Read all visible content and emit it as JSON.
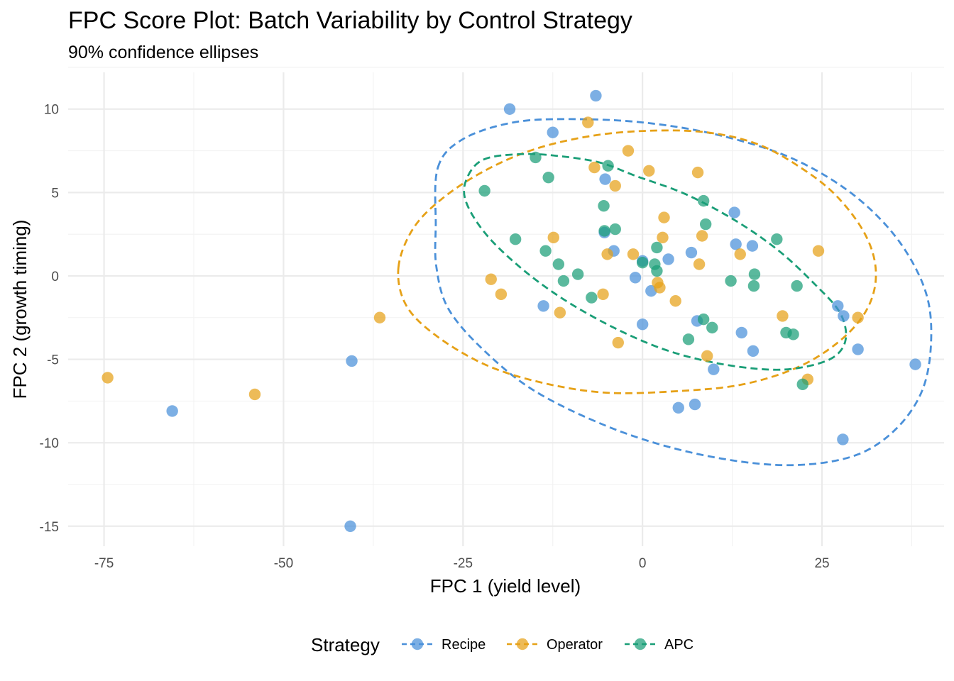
{
  "chart_data": {
    "type": "scatter",
    "title": "FPC Score Plot: Batch Variability by Control Strategy",
    "subtitle": "90% confidence ellipses",
    "xlabel": "FPC 1 (yield level)",
    "ylabel": "FPC 2 (growth timing)",
    "xlim": [
      -80,
      42
    ],
    "ylim": [
      -16.2,
      12.2
    ],
    "x_ticks": [
      -75,
      -50,
      -25,
      0,
      25
    ],
    "x_tick_labels": [
      "-75",
      "-50",
      "-25",
      "0",
      "25"
    ],
    "y_ticks": [
      10,
      5,
      0,
      -5,
      -10,
      -15
    ],
    "y_tick_labels": [
      "10",
      "5",
      "0",
      "-5",
      "-10",
      "-15"
    ],
    "legend": {
      "title": "Strategy",
      "position": "bottom"
    },
    "series": [
      {
        "name": "Recipe",
        "color": "#4a90d9",
        "points": [
          [
            -6.5,
            10.8
          ],
          [
            -18.5,
            10.0
          ],
          [
            -12.5,
            8.6
          ],
          [
            -5.2,
            5.8
          ],
          [
            12.8,
            3.8
          ],
          [
            13.0,
            1.9
          ],
          [
            15.3,
            1.8
          ],
          [
            -4.0,
            1.5
          ],
          [
            6.8,
            1.4
          ],
          [
            0.0,
            0.9
          ],
          [
            3.6,
            1.0
          ],
          [
            -1.0,
            -0.1
          ],
          [
            1.2,
            -0.9
          ],
          [
            -13.8,
            -1.8
          ],
          [
            7.6,
            -2.7
          ],
          [
            0.0,
            -2.9
          ],
          [
            27.2,
            -1.8
          ],
          [
            28.0,
            -2.4
          ],
          [
            13.8,
            -3.4
          ],
          [
            15.4,
            -4.5
          ],
          [
            30.0,
            -4.4
          ],
          [
            9.9,
            -5.6
          ],
          [
            38.0,
            -5.3
          ],
          [
            5.0,
            -7.9
          ],
          [
            7.3,
            -7.7
          ],
          [
            27.9,
            -9.8
          ],
          [
            -40.5,
            -5.1
          ],
          [
            -65.5,
            -8.1
          ],
          [
            -40.7,
            -15.0
          ],
          [
            -5.3,
            2.6
          ]
        ]
      },
      {
        "name": "Operator",
        "color": "#e6a117",
        "points": [
          [
            -7.6,
            9.2
          ],
          [
            -2.0,
            7.5
          ],
          [
            -6.7,
            6.5
          ],
          [
            0.9,
            6.3
          ],
          [
            7.7,
            6.2
          ],
          [
            -3.8,
            5.4
          ],
          [
            3.0,
            3.5
          ],
          [
            -12.4,
            2.3
          ],
          [
            2.8,
            2.3
          ],
          [
            8.3,
            2.4
          ],
          [
            -4.9,
            1.3
          ],
          [
            -1.3,
            1.3
          ],
          [
            13.6,
            1.3
          ],
          [
            24.5,
            1.5
          ],
          [
            7.9,
            0.7
          ],
          [
            -21.1,
            -0.2
          ],
          [
            -19.7,
            -1.1
          ],
          [
            2.1,
            -0.4
          ],
          [
            2.4,
            -0.7
          ],
          [
            -5.5,
            -1.1
          ],
          [
            4.6,
            -1.5
          ],
          [
            -11.5,
            -2.2
          ],
          [
            19.5,
            -2.4
          ],
          [
            30.0,
            -2.5
          ],
          [
            -36.6,
            -2.5
          ],
          [
            -3.4,
            -4.0
          ],
          [
            9.0,
            -4.8
          ],
          [
            23.0,
            -6.2
          ],
          [
            -74.5,
            -6.1
          ],
          [
            -54.0,
            -7.1
          ]
        ]
      },
      {
        "name": "APC",
        "color": "#1a9e77",
        "points": [
          [
            -14.9,
            7.1
          ],
          [
            -13.1,
            5.9
          ],
          [
            -4.8,
            6.6
          ],
          [
            -22.0,
            5.1
          ],
          [
            8.5,
            4.5
          ],
          [
            -5.4,
            4.2
          ],
          [
            8.8,
            3.1
          ],
          [
            -5.3,
            2.7
          ],
          [
            -3.8,
            2.8
          ],
          [
            -17.7,
            2.2
          ],
          [
            18.7,
            2.2
          ],
          [
            2.0,
            1.7
          ],
          [
            -13.5,
            1.5
          ],
          [
            0.0,
            0.8
          ],
          [
            1.7,
            0.7
          ],
          [
            -11.7,
            0.7
          ],
          [
            2.0,
            0.3
          ],
          [
            -9.0,
            0.1
          ],
          [
            15.6,
            0.1
          ],
          [
            -11.0,
            -0.3
          ],
          [
            12.3,
            -0.3
          ],
          [
            15.5,
            -0.6
          ],
          [
            21.5,
            -0.6
          ],
          [
            -7.1,
            -1.3
          ],
          [
            8.5,
            -2.6
          ],
          [
            9.7,
            -3.1
          ],
          [
            20.0,
            -3.4
          ],
          [
            21.0,
            -3.5
          ],
          [
            6.4,
            -3.8
          ],
          [
            22.3,
            -6.5
          ]
        ]
      }
    ],
    "ellipses": [
      {
        "name": "Recipe",
        "color": "#4a90d9",
        "path": [
          [
            -28.5,
            6.5
          ],
          [
            -25.0,
            8.2
          ],
          [
            -18.0,
            9.2
          ],
          [
            -10.0,
            9.4
          ],
          [
            0.0,
            9.2
          ],
          [
            10.0,
            8.5
          ],
          [
            20.0,
            7.2
          ],
          [
            28.0,
            5.3
          ],
          [
            34.0,
            3.0
          ],
          [
            38.0,
            0.5
          ],
          [
            40.0,
            -2.0
          ],
          [
            40.0,
            -5.0
          ],
          [
            38.5,
            -7.3
          ],
          [
            35.0,
            -9.3
          ],
          [
            30.0,
            -10.7
          ],
          [
            23.0,
            -11.3
          ],
          [
            15.0,
            -11.2
          ],
          [
            5.0,
            -10.4
          ],
          [
            -5.0,
            -9.0
          ],
          [
            -15.0,
            -6.9
          ],
          [
            -22.0,
            -4.5
          ],
          [
            -27.0,
            -2.0
          ],
          [
            -28.7,
            0.5
          ],
          [
            -28.8,
            3.0
          ]
        ]
      },
      {
        "name": "Operator",
        "color": "#e6a117",
        "path": [
          [
            -34.0,
            0.5
          ],
          [
            -32.0,
            2.8
          ],
          [
            -28.0,
            4.6
          ],
          [
            -22.0,
            6.3
          ],
          [
            -15.0,
            7.6
          ],
          [
            -7.0,
            8.4
          ],
          [
            1.0,
            8.7
          ],
          [
            9.0,
            8.6
          ],
          [
            16.0,
            7.9
          ],
          [
            22.0,
            6.5
          ],
          [
            27.0,
            4.8
          ],
          [
            31.0,
            2.5
          ],
          [
            32.5,
            0.3
          ],
          [
            31.5,
            -1.8
          ],
          [
            28.0,
            -3.7
          ],
          [
            22.0,
            -5.4
          ],
          [
            14.0,
            -6.5
          ],
          [
            5.0,
            -6.9
          ],
          [
            -5.0,
            -7.0
          ],
          [
            -14.0,
            -6.4
          ],
          [
            -22.0,
            -5.3
          ],
          [
            -29.0,
            -3.5
          ],
          [
            -33.0,
            -1.7
          ]
        ]
      },
      {
        "name": "APC",
        "color": "#1a9e77",
        "path": [
          [
            -24.3,
            6.0
          ],
          [
            -22.0,
            7.0
          ],
          [
            -17.0,
            7.3
          ],
          [
            -12.0,
            7.2
          ],
          [
            -6.0,
            6.8
          ],
          [
            -1.0,
            6.0
          ],
          [
            6.0,
            4.9
          ],
          [
            13.0,
            3.3
          ],
          [
            19.0,
            1.5
          ],
          [
            24.0,
            -0.5
          ],
          [
            27.5,
            -2.2
          ],
          [
            28.3,
            -3.8
          ],
          [
            26.5,
            -4.9
          ],
          [
            22.0,
            -5.5
          ],
          [
            17.0,
            -5.6
          ],
          [
            10.0,
            -5.2
          ],
          [
            3.0,
            -4.4
          ],
          [
            -4.0,
            -3.1
          ],
          [
            -11.0,
            -1.4
          ],
          [
            -17.0,
            0.5
          ],
          [
            -22.0,
            2.6
          ],
          [
            -24.7,
            4.6
          ]
        ]
      }
    ]
  }
}
